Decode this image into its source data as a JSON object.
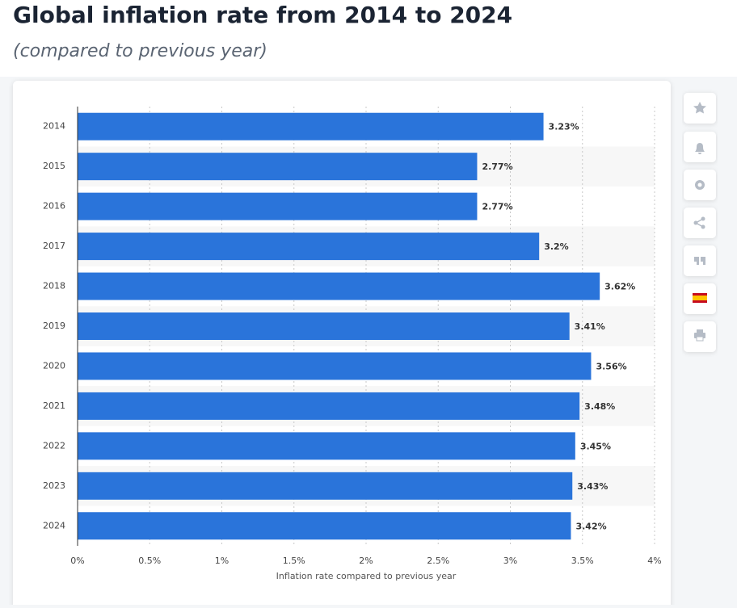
{
  "chart_data": {
    "type": "hbar",
    "title": "Global inflation rate from 2014 to 2024",
    "subtitle": "(compared to previous year)",
    "x_label": "Inflation rate compared to previous year",
    "categories": [
      "2014",
      "2015",
      "2016",
      "2017",
      "2018",
      "2019",
      "2020",
      "2021",
      "2022",
      "2023",
      "2024"
    ],
    "values": [
      3.23,
      2.77,
      2.77,
      3.2,
      3.62,
      3.41,
      3.56,
      3.48,
      3.45,
      3.43,
      3.42
    ],
    "value_labels": [
      "3.23%",
      "2.77%",
      "2.77%",
      "3.2%",
      "3.62%",
      "3.41%",
      "3.56%",
      "3.48%",
      "3.45%",
      "3.43%",
      "3.42%"
    ],
    "color": "#2a74da",
    "xlim": [
      0,
      4
    ],
    "xticks": [
      {
        "value": 0,
        "label": "0%"
      },
      {
        "value": 0.5,
        "label": "0.5%"
      },
      {
        "value": 1,
        "label": "1%"
      },
      {
        "value": 1.5,
        "label": "1.5%"
      },
      {
        "value": 2,
        "label": "2%"
      },
      {
        "value": 2.5,
        "label": "2.5%"
      },
      {
        "value": 3,
        "label": "3%"
      },
      {
        "value": 3.5,
        "label": "3.5%"
      },
      {
        "value": 4,
        "label": "4%"
      }
    ],
    "grid": true
  }
}
